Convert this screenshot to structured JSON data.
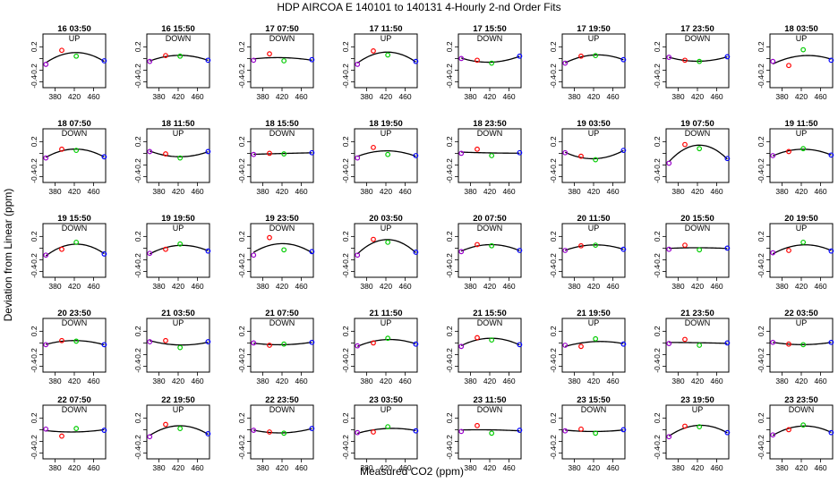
{
  "figure": {
    "title": "HDP   AIRCOA E   140101 to 140131   4-Hourly 2-nd Order Fits",
    "xlabel": "Measured CO2 (ppm)",
    "ylabel": "Deviation from Linear (ppm)"
  },
  "chart_data": {
    "type": "scatter",
    "title": "HDP   AIRCOA E   140101 to 140131   4-Hourly 2-nd Order Fits",
    "xlabel": "Measured CO2 (ppm)",
    "ylabel": "Deviation from Linear (ppm)",
    "xlim": [
      355,
      485
    ],
    "ylim": [
      -0.5,
      0.42
    ],
    "x_ticks": [
      380,
      420,
      460
    ],
    "y_ticks": [
      -0.4,
      -0.2,
      0.0,
      0.2
    ],
    "x_tick_labels": [
      "380",
      "420",
      "460"
    ],
    "y_tick_labels": [
      "-0.4",
      "-0.2",
      "0.2"
    ],
    "standard_x": [
      361,
      394,
      424,
      482
    ],
    "standard_colors": [
      "#9900cc",
      "#ff0000",
      "#00cc00",
      "#0000ff"
    ],
    "panels": [
      {
        "label": "16 03:50",
        "dir": "UP",
        "y": [
          -0.1,
          0.14,
          0.04,
          -0.04
        ]
      },
      {
        "label": "16 15:50",
        "dir": "DOWN",
        "y": [
          -0.05,
          0.05,
          0.04,
          -0.03
        ]
      },
      {
        "label": "17 07:50",
        "dir": "DOWN",
        "y": [
          -0.03,
          0.08,
          -0.04,
          -0.02
        ]
      },
      {
        "label": "17 11:50",
        "dir": "UP",
        "y": [
          -0.1,
          0.13,
          0.06,
          -0.05
        ]
      },
      {
        "label": "17 15:50",
        "dir": "DOWN",
        "y": [
          0.0,
          -0.03,
          -0.08,
          0.04
        ]
      },
      {
        "label": "17 19:50",
        "dir": "UP",
        "y": [
          -0.08,
          0.04,
          0.05,
          -0.02
        ]
      },
      {
        "label": "17 23:50",
        "dir": "DOWN",
        "y": [
          0.02,
          -0.03,
          -0.05,
          0.03
        ]
      },
      {
        "label": "18 03:50",
        "dir": "UP",
        "y": [
          -0.05,
          -0.12,
          0.15,
          -0.03
        ]
      },
      {
        "label": "18 07:50",
        "dir": "DOWN",
        "y": [
          -0.08,
          0.07,
          0.05,
          -0.06
        ]
      },
      {
        "label": "18 11:50",
        "dir": "UP",
        "y": [
          0.03,
          -0.01,
          -0.08,
          0.03
        ]
      },
      {
        "label": "18 15:50",
        "dir": "DOWN",
        "y": [
          -0.02,
          0.0,
          -0.01,
          0.01
        ]
      },
      {
        "label": "18 19:50",
        "dir": "UP",
        "y": [
          -0.08,
          0.1,
          -0.02,
          -0.04
        ]
      },
      {
        "label": "18 23:50",
        "dir": "DOWN",
        "y": [
          0.0,
          0.07,
          -0.04,
          0.01
        ]
      },
      {
        "label": "19 03:50",
        "dir": "UP",
        "y": [
          0.01,
          -0.05,
          -0.11,
          0.05
        ]
      },
      {
        "label": "19 07:50",
        "dir": "DOWN",
        "y": [
          -0.17,
          0.15,
          0.08,
          -0.09
        ]
      },
      {
        "label": "19 11:50",
        "dir": "UP",
        "y": [
          -0.04,
          0.03,
          0.08,
          -0.03
        ]
      },
      {
        "label": "19 15:50",
        "dir": "DOWN",
        "y": [
          -0.12,
          -0.02,
          0.1,
          -0.1
        ]
      },
      {
        "label": "19 19:50",
        "dir": "UP",
        "y": [
          -0.09,
          -0.02,
          0.07,
          -0.05
        ]
      },
      {
        "label": "19 23:50",
        "dir": "DOWN",
        "y": [
          -0.12,
          0.18,
          -0.03,
          -0.06
        ]
      },
      {
        "label": "20 03:50",
        "dir": "UP",
        "y": [
          -0.12,
          0.15,
          0.1,
          -0.07
        ]
      },
      {
        "label": "20 07:50",
        "dir": "DOWN",
        "y": [
          -0.06,
          0.06,
          0.04,
          -0.04
        ]
      },
      {
        "label": "20 11:50",
        "dir": "UP",
        "y": [
          -0.04,
          0.04,
          0.05,
          -0.02
        ]
      },
      {
        "label": "20 15:50",
        "dir": "DOWN",
        "y": [
          -0.02,
          0.05,
          -0.03,
          0.0
        ]
      },
      {
        "label": "20 19:50",
        "dir": "UP",
        "y": [
          -0.08,
          -0.04,
          0.1,
          -0.05
        ]
      },
      {
        "label": "20 23:50",
        "dir": "DOWN",
        "y": [
          -0.03,
          0.04,
          0.03,
          -0.03
        ]
      },
      {
        "label": "21 03:50",
        "dir": "UP",
        "y": [
          0.02,
          0.04,
          -0.08,
          0.02
        ]
      },
      {
        "label": "21 07:50",
        "dir": "DOWN",
        "y": [
          0.0,
          -0.04,
          -0.02,
          0.01
        ]
      },
      {
        "label": "21 11:50",
        "dir": "UP",
        "y": [
          -0.05,
          0.0,
          0.08,
          -0.02
        ]
      },
      {
        "label": "21 15:50",
        "dir": "DOWN",
        "y": [
          -0.06,
          0.09,
          0.05,
          -0.03
        ]
      },
      {
        "label": "21 19:50",
        "dir": "UP",
        "y": [
          -0.04,
          -0.06,
          0.07,
          -0.02
        ]
      },
      {
        "label": "21 23:50",
        "dir": "DOWN",
        "y": [
          -0.01,
          0.06,
          -0.04,
          0.0
        ]
      },
      {
        "label": "22 03:50",
        "dir": "UP",
        "y": [
          0.01,
          -0.02,
          -0.03,
          0.01
        ]
      },
      {
        "label": "22 07:50",
        "dir": "DOWN",
        "y": [
          0.01,
          -0.11,
          0.02,
          -0.01
        ]
      },
      {
        "label": "22 19:50",
        "dir": "UP",
        "y": [
          -0.12,
          0.09,
          0.02,
          -0.07
        ]
      },
      {
        "label": "22 23:50",
        "dir": "DOWN",
        "y": [
          -0.01,
          -0.04,
          -0.06,
          0.02
        ]
      },
      {
        "label": "23 03:50",
        "dir": "UP",
        "y": [
          -0.05,
          -0.04,
          0.05,
          -0.02
        ]
      },
      {
        "label": "23 11:50",
        "dir": "DOWN",
        "y": [
          -0.03,
          0.07,
          -0.06,
          -0.01
        ]
      },
      {
        "label": "23 15:50",
        "dir": "DOWN",
        "y": [
          -0.02,
          0.01,
          -0.06,
          0.0
        ]
      },
      {
        "label": "23 19:50",
        "dir": "UP",
        "y": [
          -0.12,
          0.06,
          0.05,
          -0.05
        ]
      },
      {
        "label": "23 23:50",
        "dir": "DOWN",
        "y": [
          -0.09,
          0.0,
          0.08,
          -0.05
        ]
      }
    ]
  }
}
